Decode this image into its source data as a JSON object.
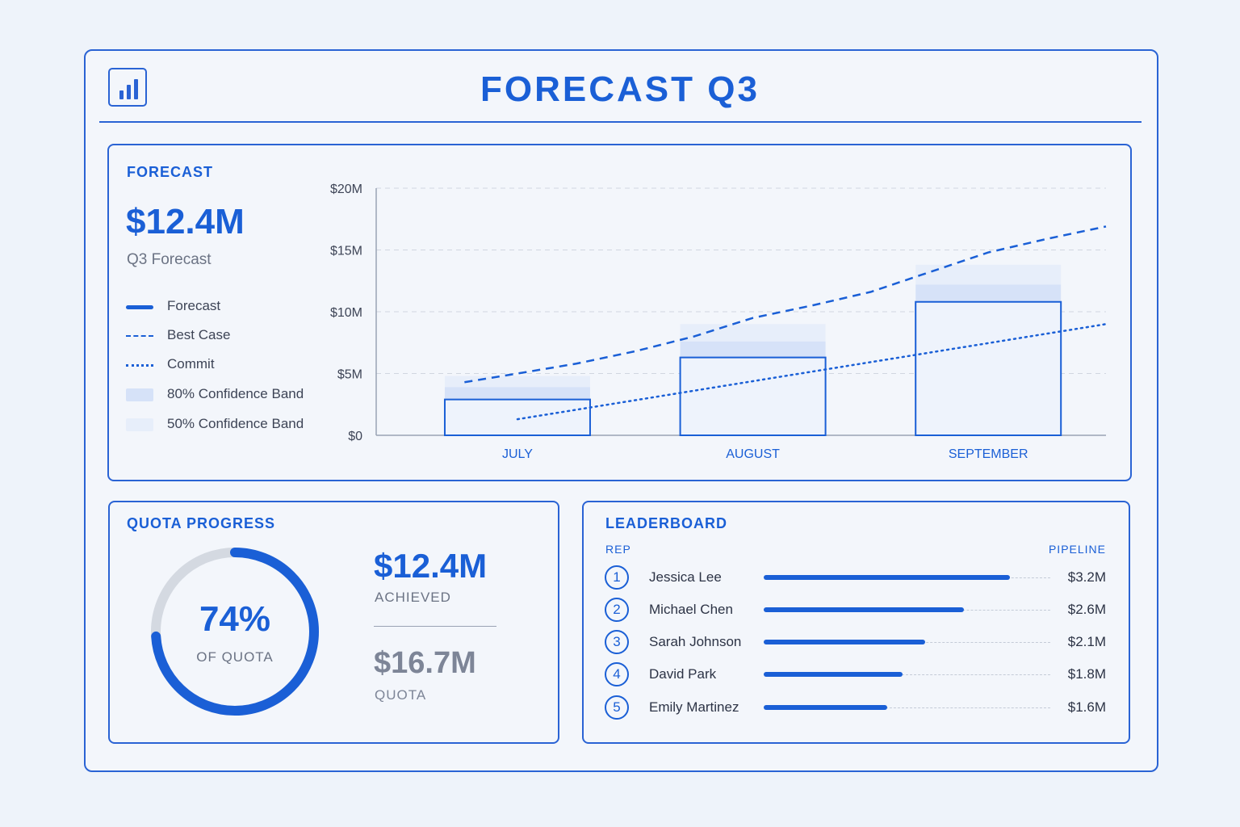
{
  "header": {
    "title": "FORECAST Q3",
    "logo_icon": "bar-chart-icon"
  },
  "forecast": {
    "section_label": "FORECAST",
    "value": "$12.4M",
    "value_label": "Q3 Forecast",
    "legend": [
      {
        "label": "Forecast",
        "style": "solid"
      },
      {
        "label": "Best Case",
        "style": "dashed"
      },
      {
        "label": "Commit",
        "style": "dotted"
      },
      {
        "label": "80% Confidence Band",
        "style": "band80"
      },
      {
        "label": "50% Confidence Band",
        "style": "band50"
      }
    ]
  },
  "chart_data": {
    "type": "bar",
    "categories": [
      "JULY",
      "AUGUST",
      "SEPTEMBER"
    ],
    "ylim": [
      0,
      20
    ],
    "y_ticks": [
      "$0",
      "$5M",
      "$10M",
      "$15M",
      "$20M"
    ],
    "y_tick_values": [
      0,
      5,
      10,
      15,
      20
    ],
    "grid": true,
    "series": [
      {
        "name": "Forecast",
        "type": "bar",
        "values": [
          2.9,
          6.3,
          10.8
        ]
      },
      {
        "name": "80% Confidence Band",
        "type": "band",
        "values": [
          [
            2.9,
            3.9
          ],
          [
            6.3,
            7.6
          ],
          [
            10.8,
            12.2
          ]
        ]
      },
      {
        "name": "50% Confidence Band",
        "type": "band",
        "values": [
          [
            3.9,
            4.8
          ],
          [
            7.6,
            9.0
          ],
          [
            12.2,
            13.8
          ]
        ]
      }
    ],
    "lines": [
      {
        "name": "Best Case",
        "style": "dashed",
        "x": [
          0.55,
          1.0,
          1.5,
          2.0,
          2.5,
          3.0,
          3.5,
          4.0,
          4.5,
          5.0,
          5.5,
          6.0
        ],
        "values": [
          4.3,
          5.0,
          5.8,
          6.8,
          8.0,
          9.5,
          10.5,
          11.6,
          13.2,
          14.8,
          15.9,
          16.9
        ]
      },
      {
        "name": "Commit",
        "style": "dotted",
        "x": [
          1.0,
          6.0
        ],
        "values": [
          1.3,
          9.0
        ]
      }
    ]
  },
  "quota": {
    "section_label": "QUOTA PROGRESS",
    "percent": "74%",
    "percent_value": 74,
    "percent_label": "OF QUOTA",
    "achieved_value": "$12.4M",
    "achieved_label": "ACHIEVED",
    "quota_value": "$16.7M",
    "quota_label": "QUOTA"
  },
  "leaderboard": {
    "section_label": "LEADERBOARD",
    "col_rep": "REP",
    "col_pipeline": "PIPELINE",
    "rows": [
      {
        "rank": "1",
        "name": "Jessica Lee",
        "pipeline": "$3.2M",
        "value": 3.2
      },
      {
        "rank": "2",
        "name": "Michael Chen",
        "pipeline": "$2.6M",
        "value": 2.6
      },
      {
        "rank": "3",
        "name": "Sarah Johnson",
        "pipeline": "$2.1M",
        "value": 2.1
      },
      {
        "rank": "4",
        "name": "David Park",
        "pipeline": "$1.8M",
        "value": 1.8
      },
      {
        "rank": "5",
        "name": "Emily Martinez",
        "pipeline": "$1.6M",
        "value": 1.6
      }
    ]
  },
  "colors": {
    "accent": "#1a5fd6",
    "band80": "#d6e2f8",
    "band50": "#e7eefa",
    "track": "#d4d9e1",
    "background": "#eef3fa"
  }
}
